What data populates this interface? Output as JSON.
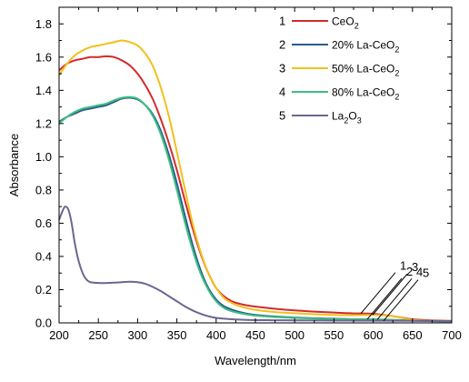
{
  "chart_data": {
    "type": "line",
    "xlabel": "Wavelength/nm",
    "ylabel": "Absorbance",
    "xlim": [
      200,
      700
    ],
    "ylim": [
      0.0,
      1.9
    ],
    "x_ticks": [
      "200",
      "250",
      "300",
      "350",
      "400",
      "450",
      "500",
      "550",
      "600",
      "650",
      "700"
    ],
    "y_ticks": [
      "0.0",
      "0.2",
      "0.4",
      "0.6",
      "0.8",
      "1.0",
      "1.2",
      "1.4",
      "1.6",
      "1.8"
    ],
    "grid": false,
    "legend_position": "top-right",
    "series": [
      {
        "number": "1",
        "name": "CeO",
        "name_sub": "2",
        "color": "#d42a2a",
        "points": [
          [
            200,
            1.52
          ],
          [
            210,
            1.56
          ],
          [
            220,
            1.58
          ],
          [
            230,
            1.59
          ],
          [
            240,
            1.6
          ],
          [
            250,
            1.6
          ],
          [
            260,
            1.605
          ],
          [
            270,
            1.6
          ],
          [
            280,
            1.58
          ],
          [
            290,
            1.55
          ],
          [
            300,
            1.5
          ],
          [
            310,
            1.43
          ],
          [
            320,
            1.34
          ],
          [
            330,
            1.22
          ],
          [
            340,
            1.08
          ],
          [
            350,
            0.92
          ],
          [
            360,
            0.74
          ],
          [
            370,
            0.57
          ],
          [
            380,
            0.42
          ],
          [
            390,
            0.3
          ],
          [
            400,
            0.21
          ],
          [
            410,
            0.16
          ],
          [
            420,
            0.13
          ],
          [
            430,
            0.115
          ],
          [
            440,
            0.105
          ],
          [
            450,
            0.098
          ],
          [
            475,
            0.085
          ],
          [
            500,
            0.075
          ],
          [
            525,
            0.068
          ],
          [
            550,
            0.062
          ],
          [
            575,
            0.057
          ],
          [
            600,
            0.055
          ],
          [
            625,
            0.04
          ],
          [
            650,
            0.022
          ],
          [
            675,
            0.015
          ],
          [
            700,
            0.012
          ]
        ]
      },
      {
        "number": "2",
        "name": "20% La-CeO",
        "name_sub": "2",
        "color": "#2b5a8f",
        "points": [
          [
            200,
            1.21
          ],
          [
            210,
            1.24
          ],
          [
            220,
            1.26
          ],
          [
            230,
            1.28
          ],
          [
            240,
            1.29
          ],
          [
            250,
            1.3
          ],
          [
            260,
            1.31
          ],
          [
            270,
            1.33
          ],
          [
            280,
            1.35
          ],
          [
            290,
            1.355
          ],
          [
            300,
            1.345
          ],
          [
            310,
            1.31
          ],
          [
            320,
            1.25
          ],
          [
            330,
            1.15
          ],
          [
            340,
            1.01
          ],
          [
            350,
            0.84
          ],
          [
            360,
            0.65
          ],
          [
            370,
            0.47
          ],
          [
            380,
            0.32
          ],
          [
            390,
            0.21
          ],
          [
            400,
            0.14
          ],
          [
            410,
            0.1
          ],
          [
            420,
            0.08
          ],
          [
            430,
            0.065
          ],
          [
            440,
            0.055
          ],
          [
            450,
            0.048
          ],
          [
            475,
            0.038
          ],
          [
            500,
            0.032
          ],
          [
            525,
            0.028
          ],
          [
            550,
            0.025
          ],
          [
            575,
            0.022
          ],
          [
            600,
            0.021
          ],
          [
            625,
            0.018
          ],
          [
            650,
            0.014
          ],
          [
            675,
            0.011
          ],
          [
            700,
            0.009
          ]
        ]
      },
      {
        "number": "3",
        "name": "50% La-CeO",
        "name_sub": "2",
        "color": "#f2c01e",
        "points": [
          [
            200,
            1.49
          ],
          [
            210,
            1.56
          ],
          [
            220,
            1.61
          ],
          [
            230,
            1.64
          ],
          [
            240,
            1.66
          ],
          [
            250,
            1.67
          ],
          [
            260,
            1.68
          ],
          [
            270,
            1.69
          ],
          [
            280,
            1.7
          ],
          [
            290,
            1.69
          ],
          [
            300,
            1.67
          ],
          [
            310,
            1.62
          ],
          [
            320,
            1.54
          ],
          [
            330,
            1.41
          ],
          [
            340,
            1.24
          ],
          [
            350,
            1.03
          ],
          [
            360,
            0.81
          ],
          [
            370,
            0.6
          ],
          [
            380,
            0.43
          ],
          [
            390,
            0.3
          ],
          [
            400,
            0.21
          ],
          [
            410,
            0.15
          ],
          [
            420,
            0.12
          ],
          [
            430,
            0.1
          ],
          [
            440,
            0.088
          ],
          [
            450,
            0.078
          ],
          [
            475,
            0.065
          ],
          [
            500,
            0.058
          ],
          [
            525,
            0.052
          ],
          [
            550,
            0.048
          ],
          [
            575,
            0.046
          ],
          [
            600,
            0.048
          ],
          [
            625,
            0.04
          ],
          [
            650,
            0.018
          ],
          [
            675,
            0.012
          ],
          [
            700,
            0.01
          ]
        ]
      },
      {
        "number": "4",
        "name": "80% La-CeO",
        "name_sub": "2",
        "color": "#3fbf7f",
        "points": [
          [
            200,
            1.2
          ],
          [
            210,
            1.24
          ],
          [
            220,
            1.27
          ],
          [
            230,
            1.29
          ],
          [
            240,
            1.3
          ],
          [
            250,
            1.31
          ],
          [
            260,
            1.32
          ],
          [
            270,
            1.34
          ],
          [
            280,
            1.355
          ],
          [
            290,
            1.36
          ],
          [
            300,
            1.35
          ],
          [
            310,
            1.31
          ],
          [
            320,
            1.24
          ],
          [
            330,
            1.13
          ],
          [
            340,
            0.98
          ],
          [
            350,
            0.8
          ],
          [
            360,
            0.61
          ],
          [
            370,
            0.44
          ],
          [
            380,
            0.3
          ],
          [
            390,
            0.2
          ],
          [
            400,
            0.13
          ],
          [
            410,
            0.09
          ],
          [
            420,
            0.07
          ],
          [
            430,
            0.058
          ],
          [
            440,
            0.05
          ],
          [
            450,
            0.044
          ],
          [
            475,
            0.035
          ],
          [
            500,
            0.03
          ],
          [
            525,
            0.026
          ],
          [
            550,
            0.023
          ],
          [
            575,
            0.021
          ],
          [
            600,
            0.02
          ],
          [
            625,
            0.017
          ],
          [
            650,
            0.013
          ],
          [
            675,
            0.01
          ],
          [
            700,
            0.008
          ]
        ]
      },
      {
        "number": "5",
        "name": "La",
        "name_sub": "2",
        "name_mid": "O",
        "name_sub2": "3",
        "color": "#6d6592",
        "points": [
          [
            200,
            0.62
          ],
          [
            205,
            0.68
          ],
          [
            208,
            0.7
          ],
          [
            212,
            0.68
          ],
          [
            216,
            0.6
          ],
          [
            220,
            0.48
          ],
          [
            225,
            0.37
          ],
          [
            230,
            0.3
          ],
          [
            235,
            0.26
          ],
          [
            240,
            0.245
          ],
          [
            250,
            0.24
          ],
          [
            260,
            0.24
          ],
          [
            270,
            0.242
          ],
          [
            280,
            0.245
          ],
          [
            290,
            0.248
          ],
          [
            300,
            0.245
          ],
          [
            310,
            0.235
          ],
          [
            320,
            0.215
          ],
          [
            330,
            0.19
          ],
          [
            340,
            0.16
          ],
          [
            350,
            0.13
          ],
          [
            360,
            0.1
          ],
          [
            370,
            0.075
          ],
          [
            380,
            0.055
          ],
          [
            390,
            0.04
          ],
          [
            400,
            0.03
          ],
          [
            420,
            0.022
          ],
          [
            440,
            0.018
          ],
          [
            470,
            0.016
          ],
          [
            500,
            0.015
          ],
          [
            550,
            0.014
          ],
          [
            600,
            0.013
          ],
          [
            650,
            0.012
          ],
          [
            700,
            0.011
          ]
        ]
      }
    ],
    "annotations": [
      {
        "label": "1",
        "series": 0
      },
      {
        "label": "2",
        "series": 1
      },
      {
        "label": "3",
        "series": 2
      },
      {
        "label": "4",
        "series": 3
      },
      {
        "label": "5",
        "series": 4
      }
    ]
  }
}
